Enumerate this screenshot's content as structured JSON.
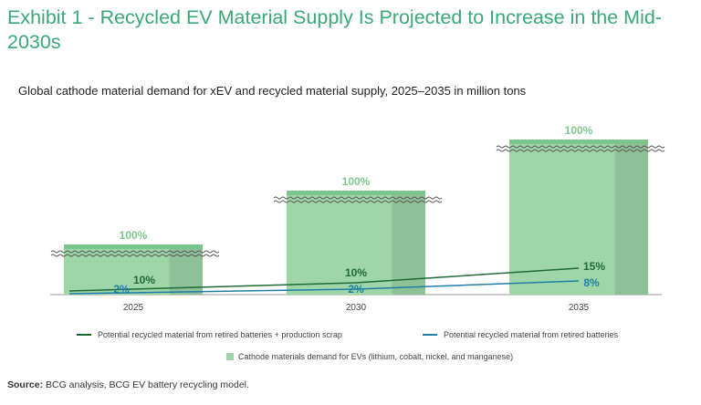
{
  "exhibit_title": "Exhibit 1 - Recycled EV Material Supply Is Projected to Increase in the Mid-2030s",
  "chart_data": {
    "type": "bar",
    "title": "Global cathode material demand for xEV and recycled material supply, 2025–2035 in million tons",
    "categories": [
      "2025",
      "2030",
      "2035"
    ],
    "bars": {
      "name": "Cathode materials demand for EVs (lithium, cobalt, nickel, and manganese)",
      "labels": [
        "100%",
        "100%",
        "100%"
      ],
      "values": [
        100,
        100,
        100
      ]
    },
    "series": [
      {
        "name": "Potential recycled material from retired batteries + production scrap",
        "values": [
          10,
          10,
          15
        ],
        "labels": [
          "10%",
          "10%",
          "15%"
        ]
      },
      {
        "name": "Potential recycled material from retired batteries",
        "values": [
          2,
          2,
          8
        ],
        "labels": [
          "2%",
          "2%",
          "8%"
        ]
      }
    ],
    "axis_break": true,
    "legend_position": "bottom",
    "colors": {
      "bar": "#9fd6a8",
      "bar_shade": "#8fc198",
      "bar_top": "#7bc48c",
      "line_total": "#1e6b35",
      "line_retired": "#1f7ea8",
      "label_bar": "#7cc98c"
    }
  },
  "legend": {
    "total_label": "Potential recycled material from retired batteries + production scrap",
    "retired_label": "Potential recycled material from retired batteries",
    "bar_label": "Cathode materials demand for EVs (lithium, cobalt, nickel, and manganese)"
  },
  "source": {
    "prefix": "Source:",
    "text": " BCG analysis, BCG EV battery recycling model."
  }
}
